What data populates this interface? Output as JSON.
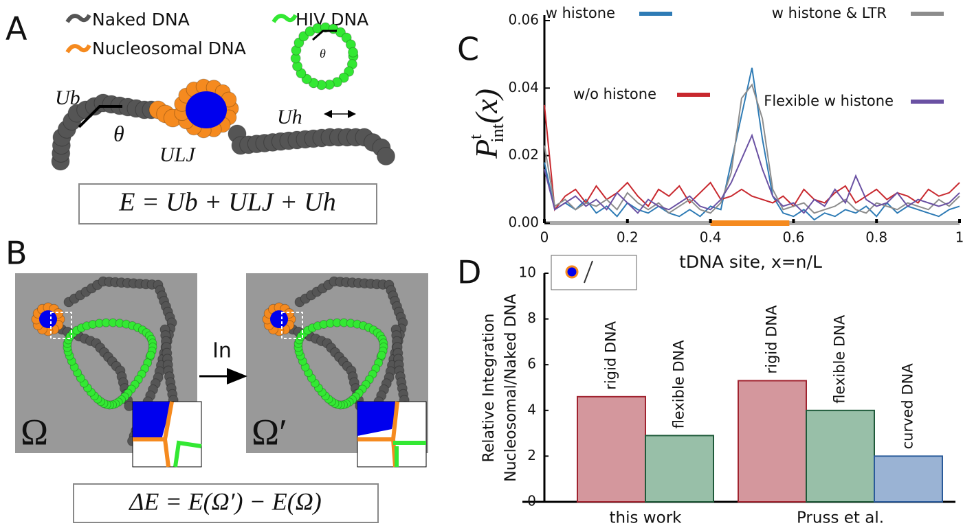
{
  "panels": {
    "A": "A",
    "B": "B",
    "C": "C",
    "D": "D",
    "legend_naked": "Naked DNA",
    "legend_hiv": "HIV DNA",
    "legend_nucleosomal": "Nucleosomal DNA",
    "theta": "θ",
    "theta_small": "θ",
    "u_b": "Ub",
    "u_h": "Uh",
    "u_lj": "ULJ",
    "energy": "E = Ub + ULJ + Uh",
    "omega": "Ω",
    "omega_prime": "Ω′",
    "move": "In",
    "delta_energy": "ΔE = E(Ω′) − E(Ω)"
  },
  "chart_data": [
    {
      "type": "line",
      "y_label": {
        "main": "P",
        "sup": "t",
        "sub": "int",
        "arg": "(x)"
      },
      "x_label": "tDNA site, x=n/L",
      "xlim": [
        0,
        1
      ],
      "xticks": [
        0,
        0.2,
        0.4,
        0.6,
        0.8,
        1
      ],
      "ylim": [
        0,
        0.06
      ],
      "yticks": [
        {
          "value": 0,
          "label": "0.00"
        },
        {
          "value": 0.02,
          "label": "0.02"
        },
        {
          "value": 0.04,
          "label": "0.04"
        },
        {
          "value": 0.06,
          "label": "0.06"
        }
      ],
      "x": [
        0,
        0.025,
        0.05,
        0.075,
        0.1,
        0.125,
        0.15,
        0.175,
        0.2,
        0.225,
        0.25,
        0.275,
        0.3,
        0.325,
        0.35,
        0.375,
        0.4,
        0.425,
        0.45,
        0.475,
        0.5,
        0.525,
        0.55,
        0.575,
        0.6,
        0.625,
        0.65,
        0.675,
        0.7,
        0.725,
        0.75,
        0.775,
        0.8,
        0.825,
        0.85,
        0.875,
        0.9,
        0.925,
        0.95,
        0.975,
        1
      ],
      "series": [
        {
          "name": "w histone",
          "color": "#2e7bb5",
          "values": [
            0.018,
            0.004,
            0.006,
            0.004,
            0.007,
            0.003,
            0.005,
            0.002,
            0.006,
            0.004,
            0.003,
            0.005,
            0.003,
            0.002,
            0.004,
            0.002,
            0.005,
            0.004,
            0.018,
            0.032,
            0.046,
            0.025,
            0.008,
            0.003,
            0.002,
            0.004,
            0.001,
            0.003,
            0.002,
            0.004,
            0.003,
            0.005,
            0.002,
            0.006,
            0.003,
            0.005,
            0.004,
            0.003,
            0.002,
            0.004,
            0.005
          ]
        },
        {
          "name": "w/o histone",
          "color": "#c8282e",
          "values": [
            0.035,
            0.004,
            0.008,
            0.01,
            0.006,
            0.011,
            0.007,
            0.009,
            0.012,
            0.008,
            0.005,
            0.01,
            0.008,
            0.011,
            0.006,
            0.009,
            0.012,
            0.007,
            0.008,
            0.01,
            0.008,
            0.007,
            0.006,
            0.008,
            0.005,
            0.01,
            0.007,
            0.006,
            0.009,
            0.011,
            0.006,
            0.008,
            0.01,
            0.007,
            0.009,
            0.008,
            0.006,
            0.01,
            0.008,
            0.009,
            0.012
          ]
        },
        {
          "name": "w histone & LTR",
          "color": "#8c8c8c",
          "values": [
            0.023,
            0.005,
            0.007,
            0.004,
            0.006,
            0.005,
            0.007,
            0.004,
            0.009,
            0.006,
            0.004,
            0.006,
            0.003,
            0.005,
            0.007,
            0.004,
            0.003,
            0.006,
            0.015,
            0.037,
            0.041,
            0.031,
            0.01,
            0.004,
            0.005,
            0.006,
            0.003,
            0.004,
            0.005,
            0.007,
            0.004,
            0.003,
            0.006,
            0.005,
            0.004,
            0.006,
            0.005,
            0.004,
            0.007,
            0.005,
            0.008
          ]
        },
        {
          "name": "Flexible w histone",
          "color": "#6a51a3",
          "values": [
            0.016,
            0.004,
            0.006,
            0.008,
            0.005,
            0.007,
            0.004,
            0.009,
            0.006,
            0.003,
            0.007,
            0.005,
            0.004,
            0.006,
            0.008,
            0.005,
            0.004,
            0.007,
            0.012,
            0.019,
            0.026,
            0.016,
            0.008,
            0.005,
            0.006,
            0.003,
            0.007,
            0.005,
            0.01,
            0.006,
            0.014,
            0.007,
            0.005,
            0.006,
            0.009,
            0.005,
            0.007,
            0.006,
            0.005,
            0.006,
            0.009
          ]
        }
      ]
    },
    {
      "type": "bar",
      "y_label": [
        "Relative Integration",
        "Nucleosomal/Naked DNA"
      ],
      "ylim": [
        0,
        10
      ],
      "yticks": [
        0,
        2,
        4,
        6,
        8,
        10
      ],
      "groups": [
        {
          "name": "this work",
          "categories": [
            "rigid DNA",
            "flexible DNA"
          ],
          "values": [
            4.6,
            2.9
          ],
          "colors": [
            "#d4979d",
            "#98bfa8"
          ]
        },
        {
          "name": "Pruss et al.",
          "categories": [
            "rigid DNA",
            "flexible DNA",
            "curved DNA"
          ],
          "values": [
            5.3,
            4.0,
            2.0
          ],
          "colors": [
            "#d4979d",
            "#98bfa8",
            "#9ab3d4"
          ]
        }
      ]
    }
  ]
}
